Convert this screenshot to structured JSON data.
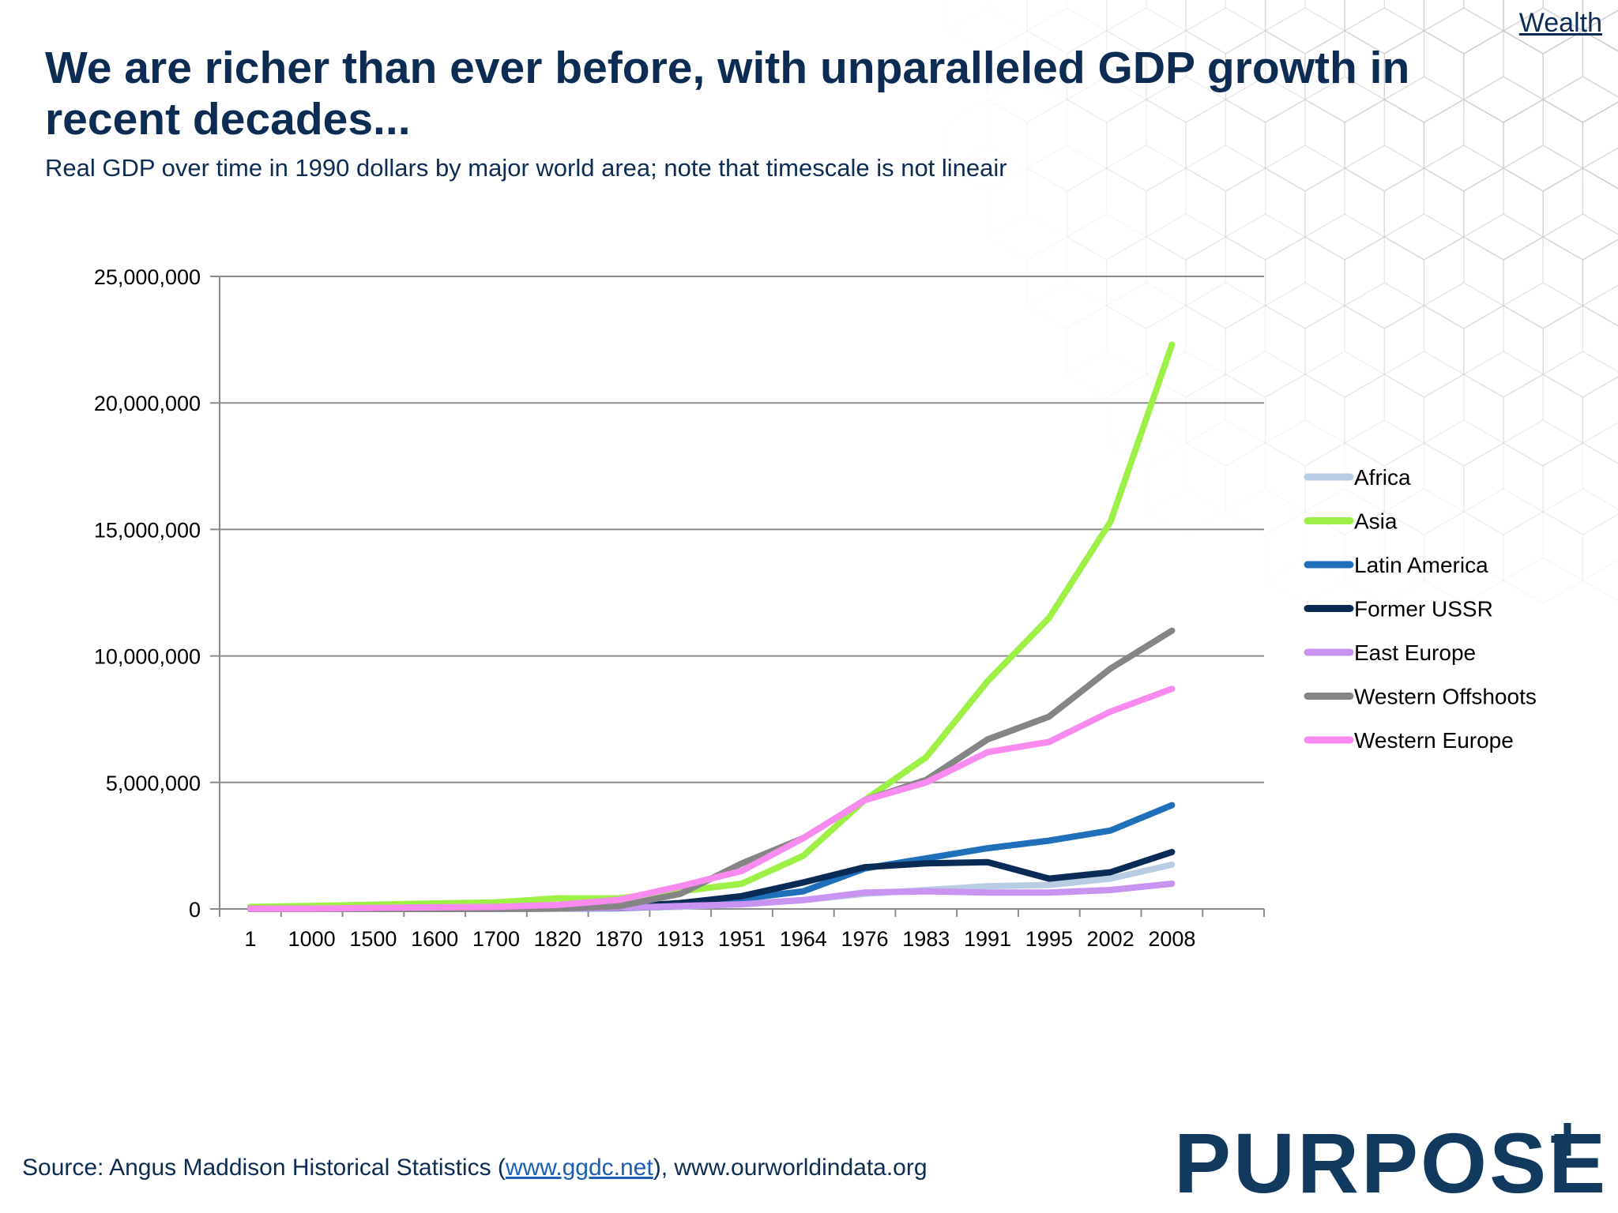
{
  "header": {
    "nav_link": "Wealth",
    "title": "We are richer than ever before, with unparalleled GDP growth in recent decades...",
    "subtitle": "Real GDP over time in 1990 dollars by major world area; note that timescale is not lineair"
  },
  "chart_data": {
    "type": "line",
    "title": "We are richer than ever before, with unparalleled GDP growth in recent decades...",
    "subtitle": "Real GDP over time in 1990 dollars by major world area; note that timescale is not lineair",
    "xlabel": "",
    "ylabel": "",
    "ylim": [
      0,
      25000000
    ],
    "yticks": [
      0,
      5000000,
      10000000,
      15000000,
      20000000,
      25000000
    ],
    "ytick_labels": [
      "0",
      "5,000,000",
      "10,000,000",
      "15,000,000",
      "20,000,000",
      "25,000,000"
    ],
    "grid": true,
    "legend_position": "right",
    "categories": [
      "1",
      "1000",
      "1500",
      "1600",
      "1700",
      "1820",
      "1870",
      "1913",
      "1951",
      "1964",
      "1976",
      "1983",
      "1991",
      "1995",
      "2002",
      "2008"
    ],
    "series": [
      {
        "name": "Africa",
        "color": "#b8cce4",
        "values": [
          8000,
          14000,
          19000,
          23000,
          25000,
          31000,
          46000,
          80000,
          200000,
          350000,
          600000,
          750000,
          900000,
          950000,
          1200000,
          1750000
        ]
      },
      {
        "name": "Asia",
        "color": "#9cf046",
        "values": [
          80000,
          120000,
          170000,
          220000,
          260000,
          420000,
          420000,
          700000,
          1000000,
          2100000,
          4300000,
          6000000,
          9000000,
          11500000,
          15300000,
          22300000
        ]
      },
      {
        "name": "Latin America",
        "color": "#1f6fba",
        "values": [
          2000,
          4000,
          7000,
          4000,
          6000,
          15000,
          28000,
          120000,
          400000,
          700000,
          1600000,
          2000000,
          2400000,
          2700000,
          3100000,
          4100000
        ]
      },
      {
        "name": "Former USSR",
        "color": "#0b2b57",
        "values": [
          2000,
          3000,
          8000,
          12000,
          17000,
          38000,
          84000,
          233000,
          510000,
          1050000,
          1650000,
          1800000,
          1850000,
          1200000,
          1450000,
          2250000
        ]
      },
      {
        "name": "East Europe",
        "color": "#c993f2",
        "values": [
          2000,
          4000,
          7000,
          9000,
          12000,
          25000,
          44000,
          120000,
          185000,
          350000,
          650000,
          700000,
          650000,
          650000,
          750000,
          1000000
        ]
      },
      {
        "name": "Western Offshoots",
        "color": "#858585",
        "values": [
          500,
          800,
          1000,
          1200,
          2000,
          14000,
          111000,
          600000,
          1800000,
          2800000,
          4300000,
          5100000,
          6700000,
          7600000,
          9500000,
          11000000
        ]
      },
      {
        "name": "Western Europe",
        "color": "#f98af0",
        "values": [
          12000,
          11000,
          44000,
          66000,
          81000,
          160000,
          360000,
          900000,
          1500000,
          2800000,
          4300000,
          5000000,
          6200000,
          6600000,
          7800000,
          8700000
        ]
      }
    ]
  },
  "footer": {
    "source_prefix": "Source: Angus Maddison Historical Statistics (",
    "source_link": "www.ggdc.net",
    "source_suffix": "), www.ourworldindata.org",
    "logo_text": "PURPOSE",
    "logo_plus": "+"
  }
}
